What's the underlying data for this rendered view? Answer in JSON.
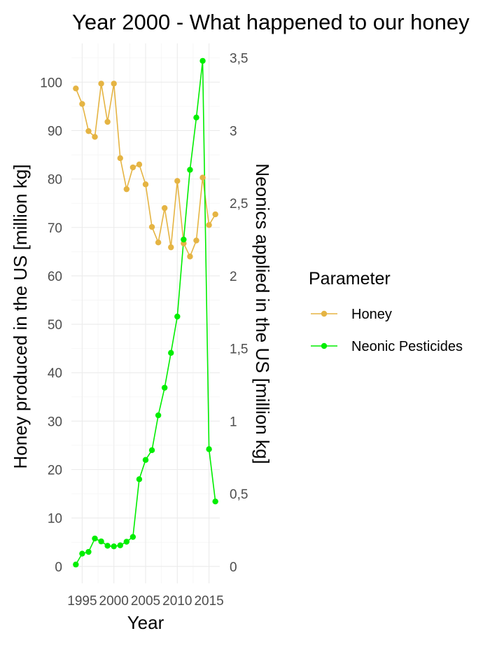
{
  "chart_data": {
    "type": "line",
    "title": "Year 2000 - What happened to our honey",
    "xlabel": "Year",
    "ylabel_left": "Honey produced in the US [million kg]",
    "ylabel_right": "Neonics applied in the US [million kg]",
    "x_ticks": [
      "1995",
      "2000",
      "2005",
      "2010",
      "2015"
    ],
    "y_left_ticks": [
      "0",
      "10",
      "20",
      "30",
      "40",
      "50",
      "60",
      "70",
      "80",
      "90",
      "100"
    ],
    "y_right_ticks": [
      "0",
      "0,5",
      "1",
      "1,5",
      "2",
      "2,5",
      "3",
      "3,5"
    ],
    "xlim": [
      1993.3,
      2016.7
    ],
    "ylim_left": [
      -3.5,
      108
    ],
    "ylim_right": [
      -0.1167,
      3.6
    ],
    "legend_title": "Parameter",
    "legend_position": "right",
    "grid": true,
    "x": [
      1994,
      1995,
      1996,
      1997,
      1998,
      1999,
      2000,
      2001,
      2002,
      2003,
      2004,
      2005,
      2006,
      2007,
      2008,
      2009,
      2010,
      2011,
      2012,
      2013,
      2014,
      2015,
      2016
    ],
    "series": [
      {
        "name": "Honey",
        "axis": "left",
        "color": "#E5B443",
        "values": [
          98.7,
          95.5,
          89.9,
          88.7,
          99.7,
          91.8,
          99.7,
          84.3,
          77.9,
          82.4,
          83.0,
          78.9,
          70.1,
          66.9,
          74.0,
          65.9,
          79.6,
          66.7,
          64.0,
          67.3,
          80.3,
          70.5,
          72.7
        ]
      },
      {
        "name": "Neonic Pesticides",
        "axis": "right",
        "color": "#00EE00",
        "values": [
          0.013,
          0.088,
          0.1,
          0.192,
          0.172,
          0.142,
          0.138,
          0.145,
          0.17,
          0.203,
          0.6,
          0.733,
          0.8,
          1.04,
          1.23,
          1.47,
          1.72,
          2.25,
          2.73,
          3.09,
          3.48,
          0.807,
          0.447
        ]
      }
    ]
  }
}
